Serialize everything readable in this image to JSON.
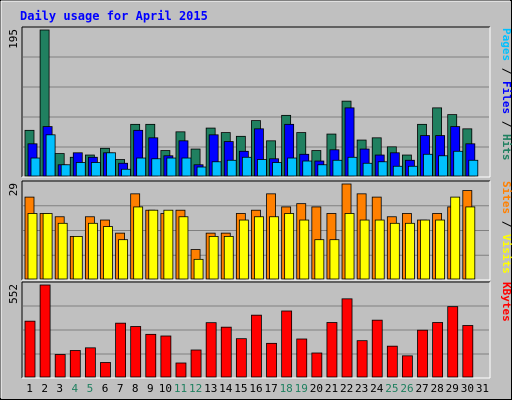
{
  "title": "Daily usage for April 2015",
  "colors": {
    "hits": "#208060",
    "files": "#0000ff",
    "pages": "#00c0ff",
    "visits": "#ffff00",
    "sites": "#ff8000",
    "kbytes": "#ff0000",
    "weekend_label": "#208060",
    "weekday_label": "#000000",
    "title": "#0000ff",
    "panel_bg": "#c0c0c0"
  },
  "legend": {
    "top": [
      {
        "text": "Pages",
        "color": "#00c0ff"
      },
      {
        "text": " / ",
        "color": "#000000"
      },
      {
        "text": "Files",
        "color": "#0000ff"
      },
      {
        "text": " / ",
        "color": "#000000"
      },
      {
        "text": "Hits",
        "color": "#208060"
      }
    ],
    "middle": [
      {
        "text": "Sites",
        "color": "#ff8000"
      },
      {
        "text": " / ",
        "color": "#000000"
      },
      {
        "text": "Visits",
        "color": "#ffff00"
      }
    ],
    "bottom": [
      {
        "text": "KBytes",
        "color": "#ff0000"
      }
    ]
  },
  "chart_data": {
    "type": "bar",
    "title": "Daily usage for April 2015",
    "categories": [
      "1",
      "2",
      "3",
      "4",
      "5",
      "6",
      "7",
      "8",
      "9",
      "10",
      "11",
      "12",
      "13",
      "14",
      "15",
      "16",
      "17",
      "18",
      "19",
      "20",
      "21",
      "22",
      "23",
      "24",
      "25",
      "26",
      "27",
      "28",
      "29",
      "30",
      "31"
    ],
    "weekend_days": [
      "4",
      "5",
      "11",
      "12",
      "18",
      "19",
      "25",
      "26"
    ],
    "panels": [
      {
        "name": "hits-files-pages",
        "ymax_label": "195",
        "ymax": 195,
        "series": [
          {
            "name": "Hits",
            "color": "#208060",
            "values": [
              61,
              195,
              30,
              25,
              28,
              37,
              22,
              69,
              69,
              34,
              59,
              36,
              64,
              58,
              53,
              74,
              47,
              81,
              58,
              34,
              56,
              100,
              48,
              51,
              39,
              28,
              69,
              91,
              82,
              63,
              0
            ]
          },
          {
            "name": "Files",
            "color": "#0000ff",
            "values": [
              43,
              66,
              15,
              31,
              25,
              31,
              17,
              61,
              51,
              27,
              47,
              15,
              55,
              46,
              33,
              63,
              23,
              69,
              29,
              20,
              35,
              91,
              36,
              28,
              31,
              21,
              54,
              54,
              66,
              43,
              0
            ]
          },
          {
            "name": "Pages",
            "color": "#00c0ff",
            "values": [
              24,
              55,
              15,
              18,
              18,
              31,
              9,
              24,
              23,
              24,
              24,
              12,
              19,
              21,
              25,
              22,
              18,
              24,
              20,
              15,
              21,
              25,
              17,
              19,
              13,
              13,
              29,
              27,
              33,
              21,
              0
            ]
          }
        ]
      },
      {
        "name": "sites-visits",
        "ymax_label": "29",
        "ymax": 29,
        "series": [
          {
            "name": "Sites",
            "color": "#ff8000",
            "values": [
              25,
              20,
              19,
              13,
              19,
              18,
              14,
              26,
              21,
              20,
              21,
              9,
              14,
              14,
              20,
              21,
              26,
              22,
              23,
              22,
              20,
              29,
              26,
              25,
              19,
              20,
              18,
              20,
              22,
              27,
              0
            ]
          },
          {
            "name": "Visits",
            "color": "#ffff00",
            "values": [
              20,
              20,
              17,
              13,
              17,
              16,
              12,
              22,
              21,
              21,
              19,
              6,
              13,
              13,
              18,
              19,
              19,
              20,
              18,
              12,
              12,
              20,
              18,
              18,
              17,
              17,
              18,
              18,
              25,
              22,
              0
            ]
          }
        ]
      },
      {
        "name": "kbytes",
        "ymax_label": "552",
        "ymax": 552,
        "series": [
          {
            "name": "KBytes",
            "color": "#ff0000",
            "values": [
              335,
              552,
              135,
              159,
              175,
              87,
              323,
              303,
              256,
              246,
              84,
              162,
              326,
              299,
              230,
              371,
              202,
              396,
              228,
              144,
              327,
              469,
              218,
              341,
              185,
              127,
              281,
              327,
              422,
              309,
              0
            ]
          }
        ]
      }
    ]
  }
}
